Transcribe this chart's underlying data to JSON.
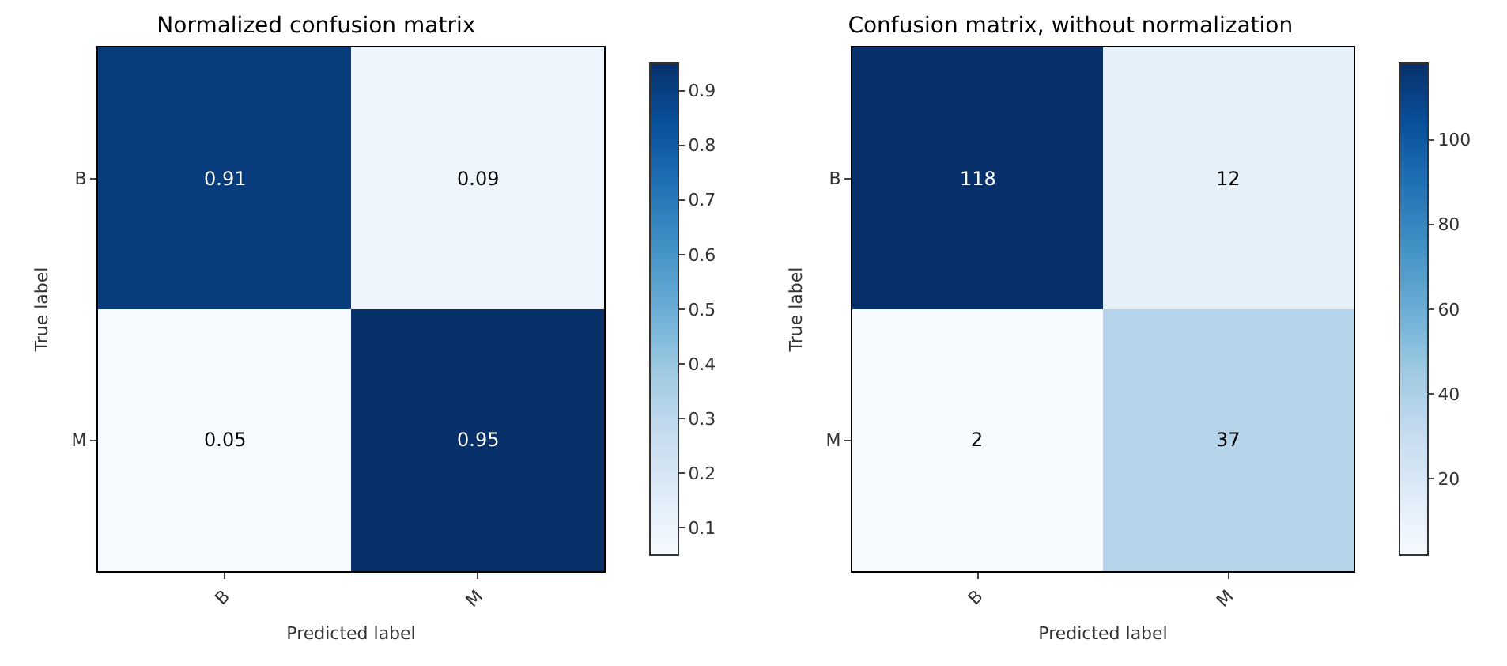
{
  "chart_data": [
    {
      "type": "heatmap",
      "title": "Normalized confusion matrix",
      "xlabel": "Predicted label",
      "ylabel": "True label",
      "categories": [
        "B",
        "M"
      ],
      "y_categories": [
        "B",
        "M"
      ],
      "cells": [
        [
          0.91,
          0.09
        ],
        [
          0.05,
          0.95
        ]
      ],
      "clim": [
        0.05,
        0.95
      ],
      "cticks": [
        0.1,
        0.2,
        0.3,
        0.4,
        0.5,
        0.6,
        0.7,
        0.8,
        0.9
      ],
      "data_labels": true
    },
    {
      "type": "heatmap",
      "title": "Confusion matrix, without normalization",
      "xlabel": "Predicted label",
      "ylabel": "True label",
      "categories": [
        "B",
        "M"
      ],
      "y_categories": [
        "B",
        "M"
      ],
      "cells": [
        [
          118,
          12
        ],
        [
          2,
          37
        ]
      ],
      "clim": [
        2,
        118
      ],
      "cticks": [
        20,
        40,
        60,
        80,
        100
      ],
      "data_labels": true
    }
  ]
}
